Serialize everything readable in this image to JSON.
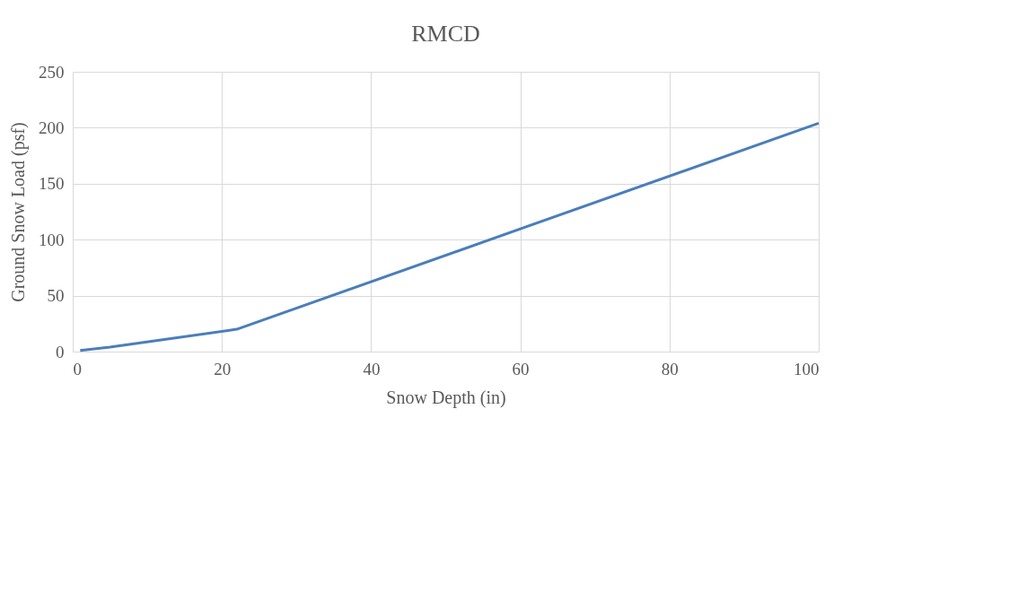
{
  "chart_data": {
    "type": "line",
    "title": "RMCD",
    "xlabel": "Snow Depth (in)",
    "ylabel": "Ground Snow Load (psf)",
    "x": [
      1,
      5,
      22,
      100
    ],
    "series": [
      {
        "color": "#4a7ebb",
        "values": [
          1,
          4,
          20,
          204
        ]
      }
    ],
    "xlim": [
      0,
      100
    ],
    "xticks": [
      0,
      20,
      40,
      60,
      80,
      100
    ],
    "ylim": [
      0,
      250
    ],
    "yticks": [
      0,
      50,
      100,
      150,
      200,
      250
    ],
    "grid": true,
    "marker": "none",
    "line_style": "solid"
  }
}
